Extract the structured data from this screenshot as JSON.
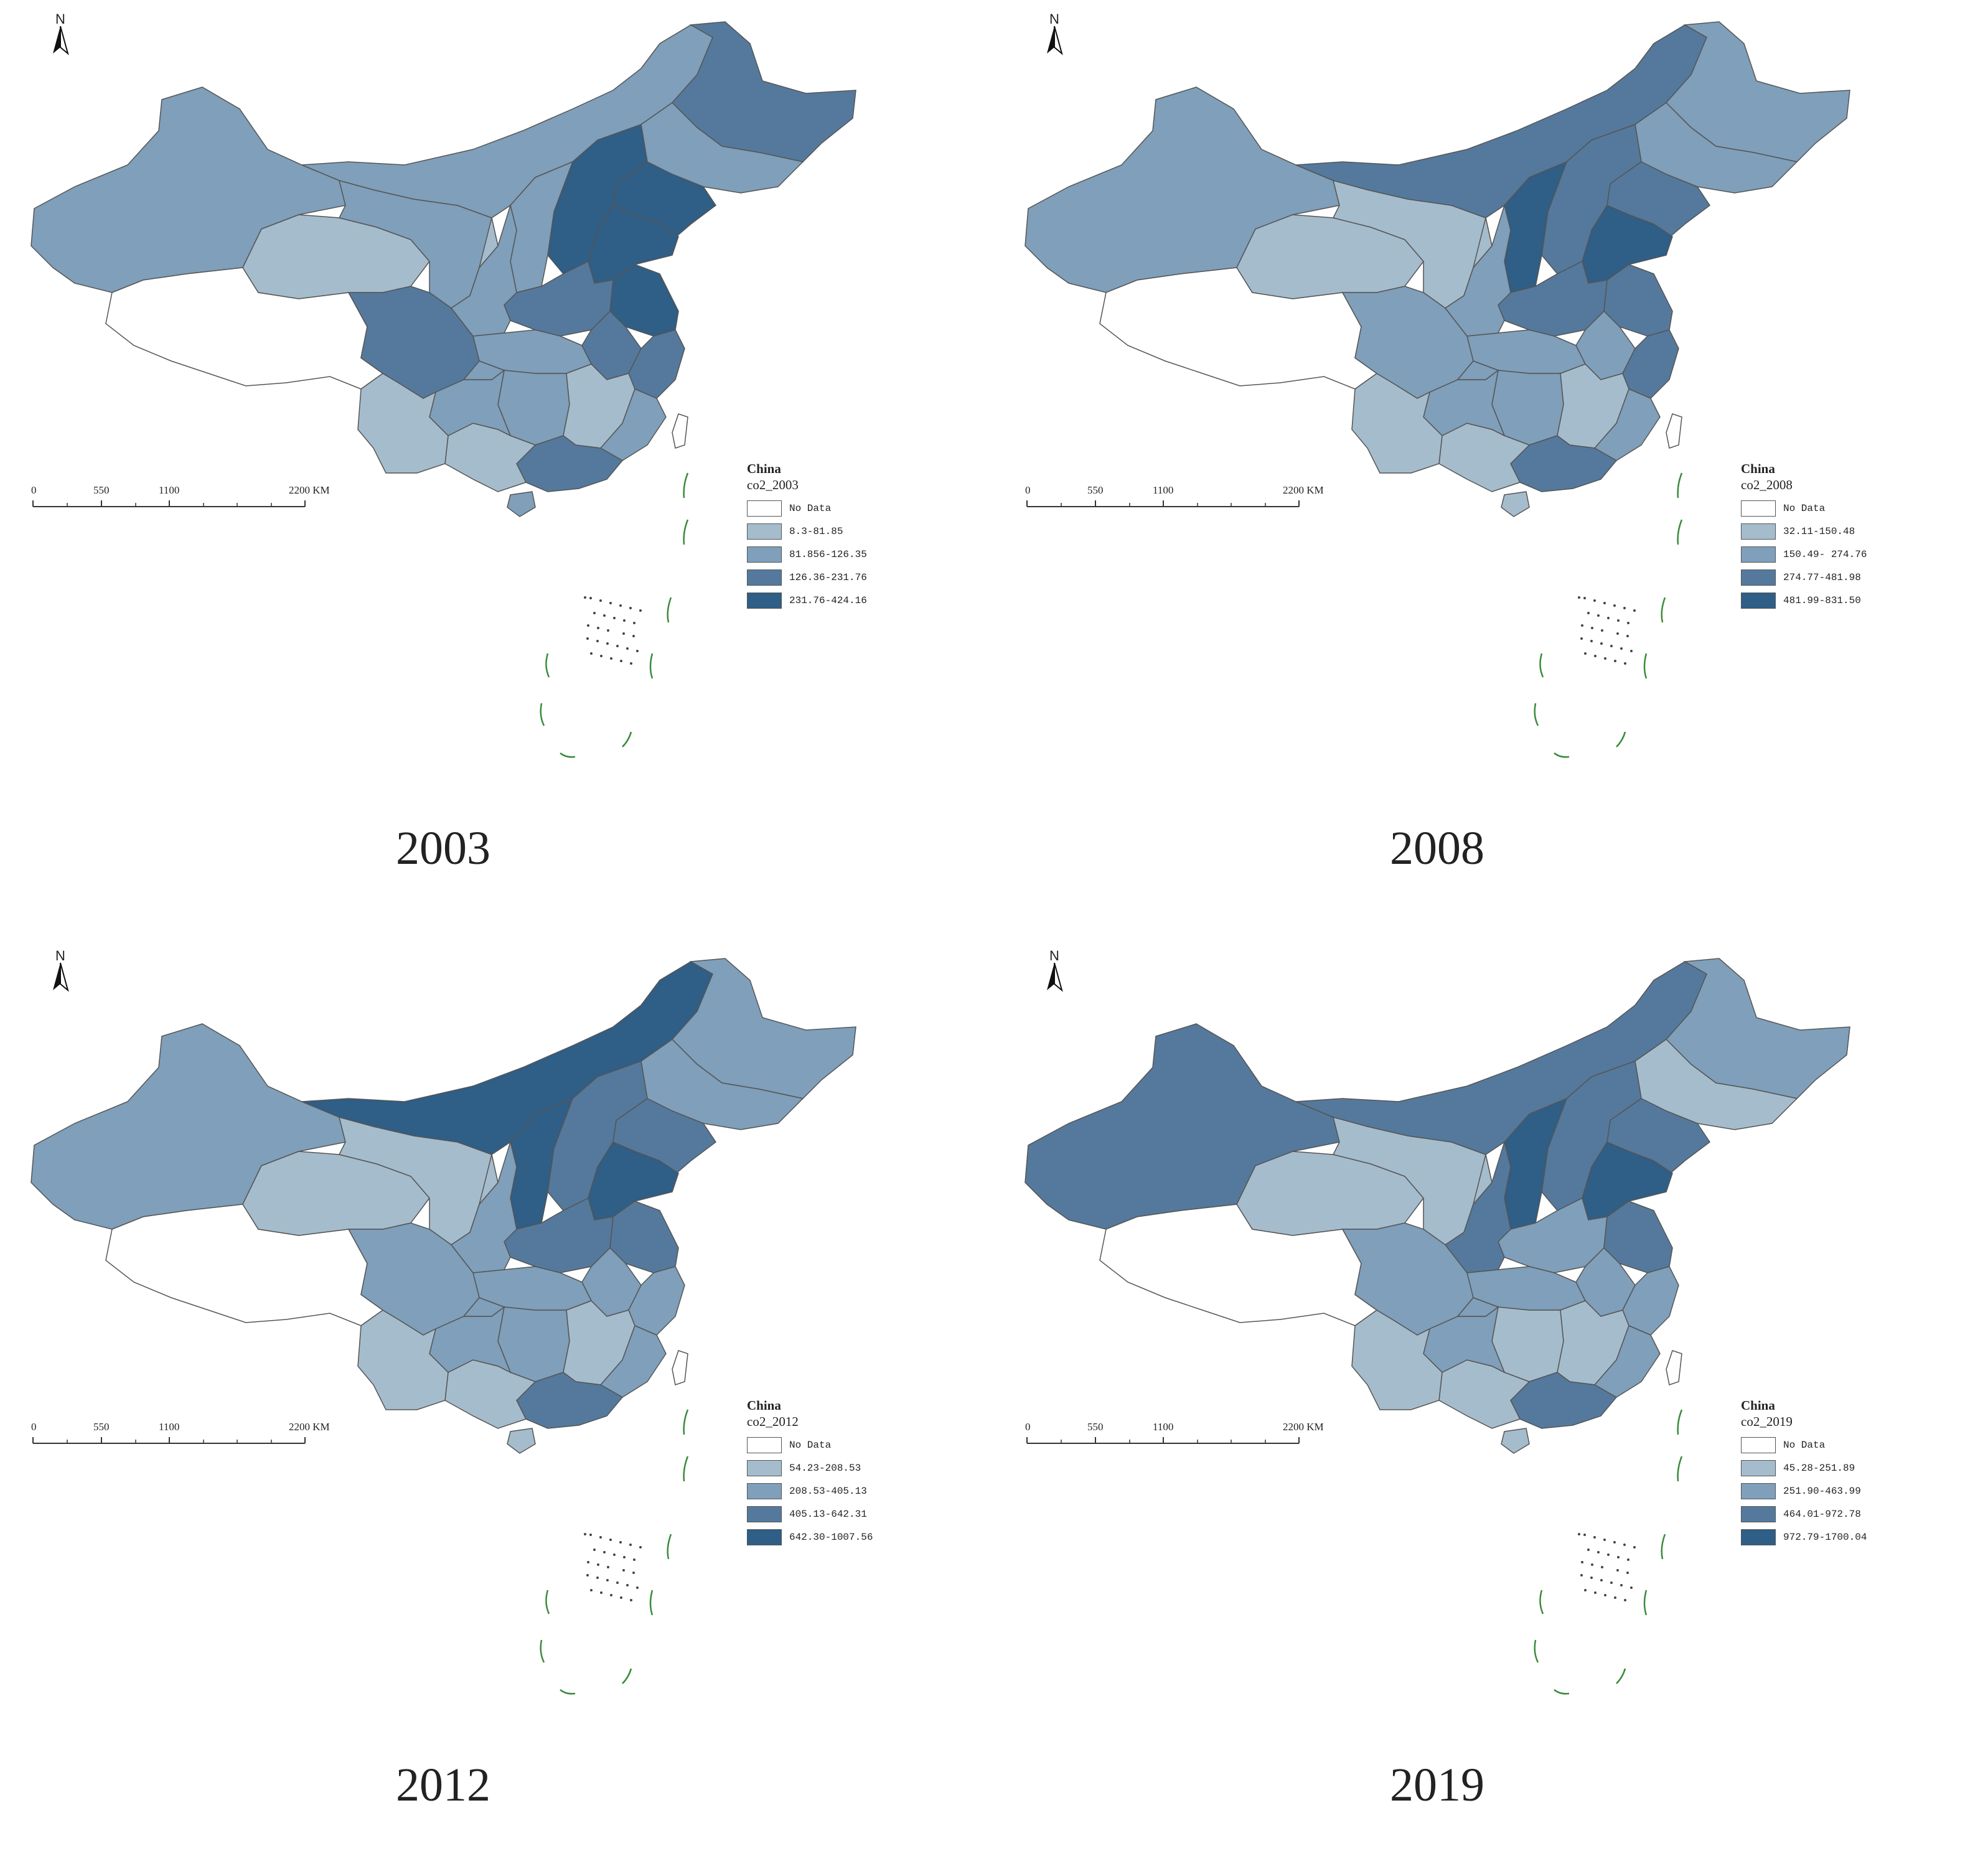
{
  "scale_labels": [
    "0",
    "550",
    "1100",
    "2200 KM"
  ],
  "north_label": "N",
  "colors": {
    "no_data": "#ffffff",
    "class1": "#a5bccc",
    "class2": "#7f9fba",
    "class3": "#54799c",
    "class4": "#2f5e86",
    "border": "#555555",
    "island_mark": "#3a8a3a"
  },
  "panels": [
    {
      "year": "2003",
      "legend_title": "China",
      "legend_field": "co2_2003",
      "classes": [
        "No Data",
        "8.3-81.85",
        "81.856-126.35",
        "126.36-231.76",
        "231.76-424.16"
      ],
      "regions": {
        "xinjiang": 2,
        "tibet": 0,
        "qinghai": 1,
        "gansu": 2,
        "inner_mongolia": 2,
        "heilongjiang": 3,
        "jilin": 2,
        "liaoning": 4,
        "hebei": 4,
        "shanxi": 2,
        "shandong": 4,
        "henan": 3,
        "jiangsu": 4,
        "anhui": 3,
        "zhejiang": 3,
        "hubei": 2,
        "hunan": 2,
        "jiangxi": 1,
        "fujian": 2,
        "guangdong": 3,
        "guangxi": 1,
        "guizhou": 2,
        "yunnan": 1,
        "sichuan": 3,
        "chongqing": 2,
        "shaanxi": 2,
        "ningxia": 1,
        "hainan": 2,
        "taiwan": 0
      }
    },
    {
      "year": "2008",
      "legend_title": "China",
      "legend_field": "co2_2008",
      "classes": [
        "No Data",
        "32.11-150.48",
        "150.49- 274.76",
        "274.77-481.98",
        "481.99-831.50"
      ],
      "regions": {
        "xinjiang": 2,
        "tibet": 0,
        "qinghai": 1,
        "gansu": 1,
        "inner_mongolia": 3,
        "heilongjiang": 2,
        "jilin": 2,
        "liaoning": 3,
        "hebei": 3,
        "shanxi": 4,
        "shandong": 4,
        "henan": 3,
        "jiangsu": 3,
        "anhui": 2,
        "zhejiang": 3,
        "hubei": 2,
        "hunan": 2,
        "jiangxi": 1,
        "fujian": 2,
        "guangdong": 3,
        "guangxi": 1,
        "guizhou": 2,
        "yunnan": 1,
        "sichuan": 2,
        "chongqing": 2,
        "shaanxi": 2,
        "ningxia": 1,
        "hainan": 1,
        "taiwan": 0
      }
    },
    {
      "year": "2012",
      "legend_title": "China",
      "legend_field": "co2_2012",
      "classes": [
        "No Data",
        "54.23-208.53",
        "208.53-405.13",
        "405.13-642.31",
        "642.30-1007.56"
      ],
      "regions": {
        "xinjiang": 2,
        "tibet": 0,
        "qinghai": 1,
        "gansu": 1,
        "inner_mongolia": 4,
        "heilongjiang": 2,
        "jilin": 2,
        "liaoning": 3,
        "hebei": 3,
        "shanxi": 4,
        "shandong": 4,
        "henan": 3,
        "jiangsu": 3,
        "anhui": 2,
        "zhejiang": 2,
        "hubei": 2,
        "hunan": 2,
        "jiangxi": 1,
        "fujian": 2,
        "guangdong": 3,
        "guangxi": 1,
        "guizhou": 2,
        "yunnan": 1,
        "sichuan": 2,
        "chongqing": 2,
        "shaanxi": 2,
        "ningxia": 1,
        "hainan": 1,
        "taiwan": 0
      }
    },
    {
      "year": "2019",
      "legend_title": "China",
      "legend_field": "co2_2019",
      "classes": [
        "No Data",
        "45.28-251.89",
        "251.90-463.99",
        "464.01-972.78",
        "972.79-1700.04"
      ],
      "regions": {
        "xinjiang": 3,
        "tibet": 0,
        "qinghai": 1,
        "gansu": 1,
        "inner_mongolia": 3,
        "heilongjiang": 2,
        "jilin": 1,
        "liaoning": 3,
        "hebei": 3,
        "shanxi": 4,
        "shandong": 4,
        "henan": 2,
        "jiangsu": 3,
        "anhui": 2,
        "zhejiang": 2,
        "hubei": 2,
        "hunan": 1,
        "jiangxi": 1,
        "fujian": 2,
        "guangdong": 3,
        "guangxi": 1,
        "guizhou": 2,
        "yunnan": 1,
        "sichuan": 2,
        "chongqing": 2,
        "shaanxi": 3,
        "ningxia": 1,
        "hainan": 1,
        "taiwan": 0
      }
    }
  ]
}
